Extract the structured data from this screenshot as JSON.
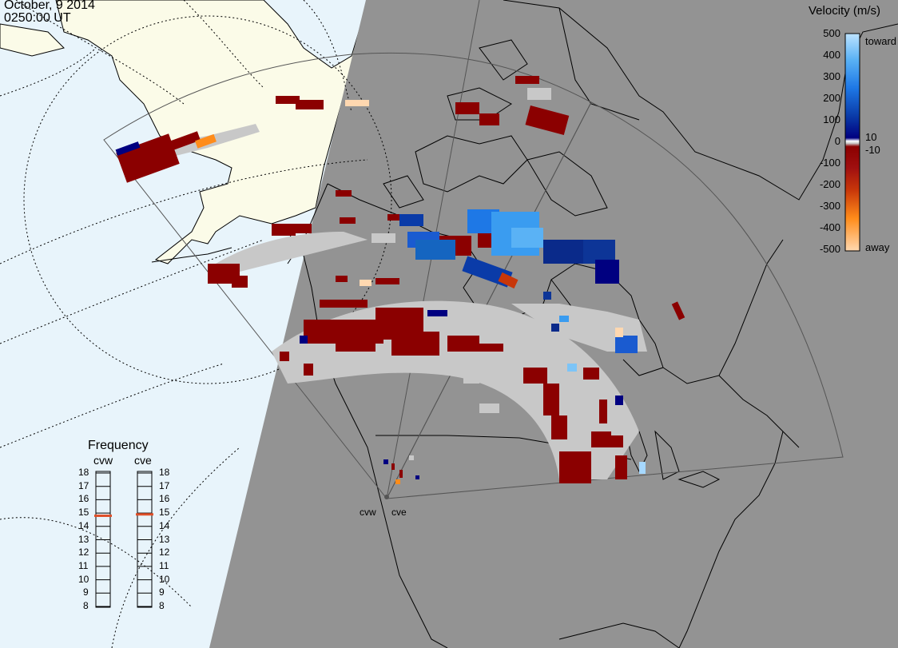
{
  "header": {
    "date": "October, 9 2014",
    "time": "0250:00 UT"
  },
  "colorbar": {
    "title": "Velocity (m/s)",
    "ticks": [
      "500",
      "400",
      "300",
      "200",
      "100",
      "0",
      "-100",
      "-200",
      "-300",
      "-400",
      "-500"
    ],
    "inner_ticks": [
      "10",
      "-10"
    ],
    "toward_label": "toward",
    "away_label": "away",
    "toward_color": "#bde3ff",
    "away_color": "#ffd8b0"
  },
  "frequency": {
    "title": "Frequency",
    "radars": [
      {
        "name": "cvw",
        "current_mhz": 14.8
      },
      {
        "name": "cve",
        "current_mhz": 14.9
      }
    ],
    "scale": [
      "18",
      "17",
      "16",
      "15",
      "14",
      "13",
      "12",
      "11",
      "10",
      "9",
      "8"
    ],
    "indicator_color": "#e0502a"
  },
  "sites": [
    {
      "label": "cvw"
    },
    {
      "label": "cve"
    }
  ],
  "colors": {
    "ocean": "#e8f4fb",
    "land_day": "#fbfbe8",
    "night": "#939393",
    "ground_scatter": "#c8c8c8",
    "away_dark": "#8b0000",
    "toward_dark": "#000080"
  }
}
